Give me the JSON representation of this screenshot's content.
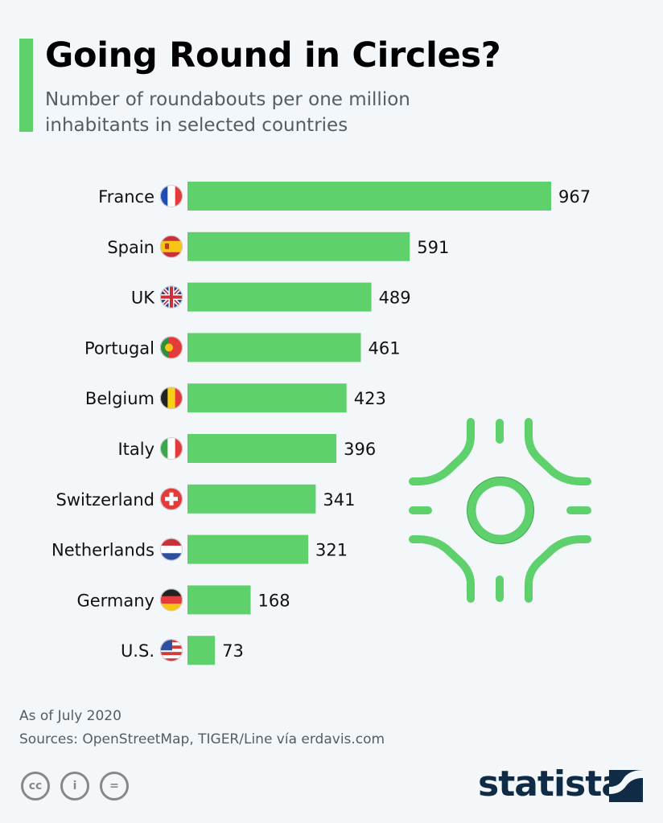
{
  "header": {
    "title": "Going Round in Circles?",
    "subtitle": "Number of roundabouts per one million inhabitants in selected countries"
  },
  "colors": {
    "bar": "#5fd16c",
    "accent": "#5fd16c",
    "text": "#000000",
    "logo": "#0f2b46"
  },
  "chart_data": {
    "type": "bar",
    "orientation": "horizontal",
    "categories": [
      "France",
      "Spain",
      "UK",
      "Portugal",
      "Belgium",
      "Italy",
      "Switzerland",
      "Netherlands",
      "Germany",
      "U.S."
    ],
    "values": [
      967,
      591,
      489,
      461,
      423,
      396,
      341,
      321,
      168,
      73
    ],
    "title": "Going Round in Circles?",
    "subtitle": "Number of roundabouts per one million inhabitants in selected countries",
    "xlabel": "",
    "ylabel": "",
    "xlim": [
      0,
      967
    ],
    "grid": false,
    "legend": "none",
    "flags": [
      "france-flag-icon",
      "spain-flag-icon",
      "uk-flag-icon",
      "portugal-flag-icon",
      "belgium-flag-icon",
      "italy-flag-icon",
      "switzerland-flag-icon",
      "netherlands-flag-icon",
      "germany-flag-icon",
      "us-flag-icon"
    ]
  },
  "footer": {
    "note": "As of July 2020",
    "sources": "Sources: OpenStreetMap, TIGER/Line vía erdavis.com",
    "license_icons": [
      "cc-icon",
      "by-icon",
      "nd-icon"
    ],
    "logo": "statista"
  }
}
